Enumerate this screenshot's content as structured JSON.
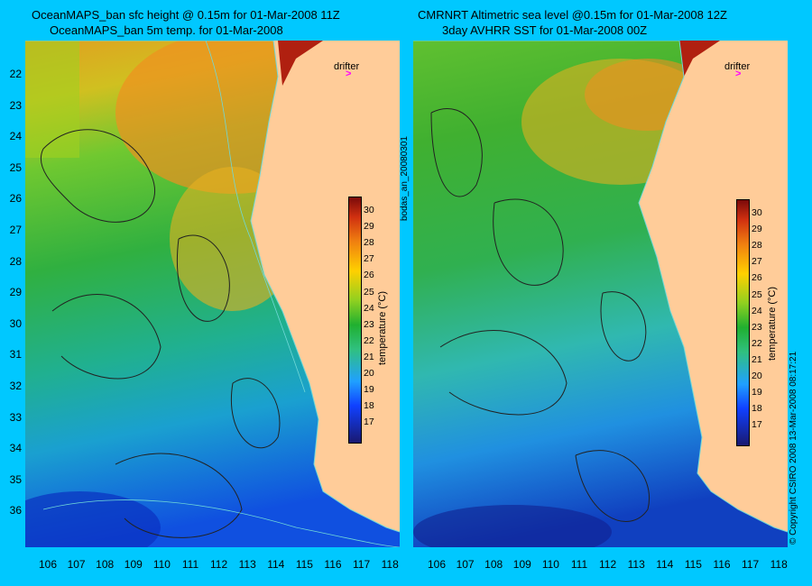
{
  "left_panel": {
    "title_line1": "OceanMAPS_ban sfc height @ 0.15m for 01-Mar-2008 11Z",
    "title_line2": "OceanMAPS_ban 5m temp. for 01-Mar-2008"
  },
  "right_panel": {
    "title_line1": "CMRNRT Altimetric sea level  @0.15m  for 01-Mar-2008 12Z",
    "title_line2": "3day AVHRR SST for 01-Mar-2008 00Z"
  },
  "drifter_label": "drifter",
  "latitude_ticks": [
    "22",
    "23",
    "24",
    "25",
    "26",
    "27",
    "28",
    "29",
    "30",
    "31",
    "32",
    "33",
    "34",
    "35",
    "36"
  ],
  "longitude_ticks": [
    "106",
    "107",
    "108",
    "109",
    "110",
    "111",
    "112",
    "113",
    "114",
    "115",
    "116",
    "117",
    "118"
  ],
  "colorbar": {
    "ticks": [
      "30",
      "29",
      "28",
      "27",
      "26",
      "25",
      "24",
      "23",
      "22",
      "21",
      "20",
      "19",
      "18",
      "17"
    ],
    "label": "temperature (°C)"
  },
  "vertical_label_middle": "bodas_an_20080301",
  "copyright": "© Copyright CSIRO 2008  13-Mar-2008 08:17:21",
  "colors": {
    "background": "#00c8ff",
    "land": "#ffcc99",
    "drifter": "#ff00ff"
  }
}
